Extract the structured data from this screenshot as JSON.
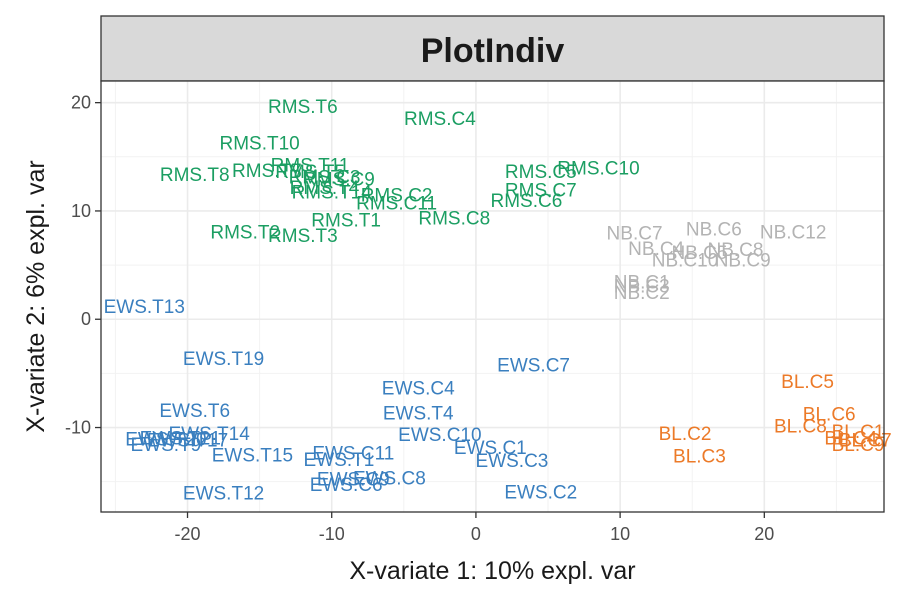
{
  "chart_data": {
    "type": "scatter",
    "title": "PlotIndiv",
    "xlabel": "X-variate 1: 10% expl. var",
    "ylabel": "X-variate 2: 6% expl. var",
    "xlim": [
      -26,
      28.3
    ],
    "ylim": [
      -17.8,
      22
    ],
    "xticks": [
      -20,
      -10,
      0,
      10,
      20
    ],
    "yticks": [
      -10,
      0,
      10,
      20
    ],
    "grid": true,
    "legend": "none",
    "colors": {
      "RMS": "#1b9e62",
      "EWS": "#3a7fbf",
      "NB": "#b3b3b3",
      "BL": "#ec7a28"
    },
    "series": [
      {
        "group": "RMS",
        "points": [
          {
            "label": "RMS.T6",
            "x": -12,
            "y": 19.7
          },
          {
            "label": "RMS.C4",
            "x": -2.5,
            "y": 18.6
          },
          {
            "label": "RMS.T10",
            "x": -15,
            "y": 16.3
          },
          {
            "label": "RMS.T8",
            "x": -19.5,
            "y": 13.4
          },
          {
            "label": "RMS.T7",
            "x": -14.5,
            "y": 13.8
          },
          {
            "label": "RMS.T11",
            "x": -11.5,
            "y": 14.3
          },
          {
            "label": "RMS.T5",
            "x": -11.5,
            "y": 13.7
          },
          {
            "label": "RMS.C3",
            "x": -10.5,
            "y": 13.2
          },
          {
            "label": "RMS.C9",
            "x": -9.5,
            "y": 13
          },
          {
            "label": "RMS.T4",
            "x": -10.5,
            "y": 12.2
          },
          {
            "label": "RMS.T14",
            "x": -10,
            "y": 11.8
          },
          {
            "label": "RMS.C2",
            "x": -5.5,
            "y": 11.5
          },
          {
            "label": "RMS.C11",
            "x": -5.5,
            "y": 10.8
          },
          {
            "label": "RMS.T1",
            "x": -9,
            "y": 9.2
          },
          {
            "label": "RMS.C8",
            "x": -1.5,
            "y": 9.4
          },
          {
            "label": "RMS.C7",
            "x": 4.5,
            "y": 12
          },
          {
            "label": "RMS.C5",
            "x": 4.5,
            "y": 13.7
          },
          {
            "label": "RMS.C10",
            "x": 8.5,
            "y": 14
          },
          {
            "label": "RMS.C6",
            "x": 3.5,
            "y": 11
          },
          {
            "label": "RMS.T2",
            "x": -16,
            "y": 8.1
          },
          {
            "label": "RMS.T3",
            "x": -12,
            "y": 7.8
          }
        ]
      },
      {
        "group": "NB",
        "points": [
          {
            "label": "NB.C7",
            "x": 11,
            "y": 8
          },
          {
            "label": "NB.C6",
            "x": 16.5,
            "y": 8.4
          },
          {
            "label": "NB.C12",
            "x": 22,
            "y": 8.1
          },
          {
            "label": "NB.C4",
            "x": 12.5,
            "y": 6.6
          },
          {
            "label": "NB.C8",
            "x": 18,
            "y": 6.5
          },
          {
            "label": "NB.C5",
            "x": 15.5,
            "y": 6.2
          },
          {
            "label": "NB.C10",
            "x": 14.5,
            "y": 5.5
          },
          {
            "label": "NB.C9",
            "x": 18.5,
            "y": 5.5
          },
          {
            "label": "NB.C1",
            "x": 11.5,
            "y": 3.5
          },
          {
            "label": "NB.C3",
            "x": 11.5,
            "y": 3.1
          },
          {
            "label": "NB.C2",
            "x": 11.5,
            "y": 2.5
          }
        ]
      },
      {
        "group": "EWS",
        "points": [
          {
            "label": "EWS.T13",
            "x": -23,
            "y": 1.2
          },
          {
            "label": "EWS.T19",
            "x": -17.5,
            "y": -3.6
          },
          {
            "label": "EWS.C7",
            "x": 4,
            "y": -4.2
          },
          {
            "label": "EWS.C4",
            "x": -4,
            "y": -6.3
          },
          {
            "label": "EWS.T6",
            "x": -19.5,
            "y": -8.4
          },
          {
            "label": "EWS.T4",
            "x": -4,
            "y": -8.6
          },
          {
            "label": "EWS.T14",
            "x": -18.5,
            "y": -10.5
          },
          {
            "label": "EWS.T21",
            "x": -20.5,
            "y": -10.9
          },
          {
            "label": "EWS.T20",
            "x": -21.5,
            "y": -11
          },
          {
            "label": "EWS.T17",
            "x": -20,
            "y": -11.1
          },
          {
            "label": "EWS.T9",
            "x": -21.5,
            "y": -11.5
          },
          {
            "label": "EWS.C10",
            "x": -2.5,
            "y": -10.6
          },
          {
            "label": "EWS.C1",
            "x": 1,
            "y": -11.8
          },
          {
            "label": "EWS.T15",
            "x": -15.5,
            "y": -12.5
          },
          {
            "label": "EWS.C11",
            "x": -8.5,
            "y": -12.3
          },
          {
            "label": "EWS.T1",
            "x": -9.5,
            "y": -12.9
          },
          {
            "label": "EWS.C3",
            "x": 2.5,
            "y": -13
          },
          {
            "label": "EWS.C8",
            "x": -6,
            "y": -14.6
          },
          {
            "label": "EWS.C9",
            "x": -8.5,
            "y": -14.7
          },
          {
            "label": "EWS.C6",
            "x": -9,
            "y": -15.2
          },
          {
            "label": "EWS.T12",
            "x": -17.5,
            "y": -16
          },
          {
            "label": "EWS.C2",
            "x": 4.5,
            "y": -15.9
          }
        ]
      },
      {
        "group": "BL",
        "points": [
          {
            "label": "BL.C5",
            "x": 23,
            "y": -5.7
          },
          {
            "label": "BL.C6",
            "x": 24.5,
            "y": -8.7
          },
          {
            "label": "BL.C8",
            "x": 22.5,
            "y": -9.8
          },
          {
            "label": "BL.C2",
            "x": 14.5,
            "y": -10.5
          },
          {
            "label": "BL.C1",
            "x": 26.5,
            "y": -10.3
          },
          {
            "label": "BL.C4",
            "x": 26,
            "y": -10.9
          },
          {
            "label": "BL.C7",
            "x": 27,
            "y": -11.1
          },
          {
            "label": "BL.C9",
            "x": 26.5,
            "y": -11.5
          },
          {
            "label": "BL.C3",
            "x": 15.5,
            "y": -12.6
          }
        ]
      }
    ]
  }
}
